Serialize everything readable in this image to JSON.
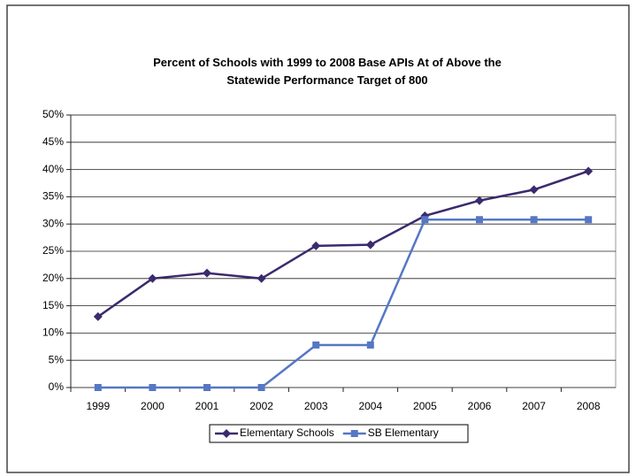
{
  "chart_data": {
    "type": "line",
    "title": "Percent of Schools with 1999 to 2008 Base APIs At of Above the Statewide Performance Target of 800",
    "categories": [
      "1999",
      "2000",
      "2001",
      "2002",
      "2003",
      "2004",
      "2005",
      "2006",
      "2007",
      "2008"
    ],
    "series": [
      {
        "name": "Elementary Schools",
        "color": "#3b2a6e",
        "marker": "diamond",
        "values": [
          13,
          20,
          21,
          20,
          26,
          26.2,
          31.5,
          34.3,
          36.3,
          39.7
        ]
      },
      {
        "name": "SB Elementary",
        "color": "#5577c4",
        "marker": "square",
        "values": [
          0,
          0,
          0,
          0,
          7.8,
          7.8,
          30.8,
          30.8,
          30.8,
          30.8
        ]
      }
    ],
    "ylim": [
      0,
      50
    ],
    "yticks": [
      {
        "value": 0,
        "label": "0%"
      },
      {
        "value": 5,
        "label": "5%"
      },
      {
        "value": 10,
        "label": "10%"
      },
      {
        "value": 15,
        "label": "15%"
      },
      {
        "value": 20,
        "label": "20%"
      },
      {
        "value": 25,
        "label": "25%"
      },
      {
        "value": 30,
        "label": "30%"
      },
      {
        "value": 35,
        "label": "35%"
      },
      {
        "value": 40,
        "label": "40%"
      },
      {
        "value": 45,
        "label": "45%"
      },
      {
        "value": 50,
        "label": "50%"
      }
    ],
    "grid": true,
    "legend": "bottom"
  }
}
